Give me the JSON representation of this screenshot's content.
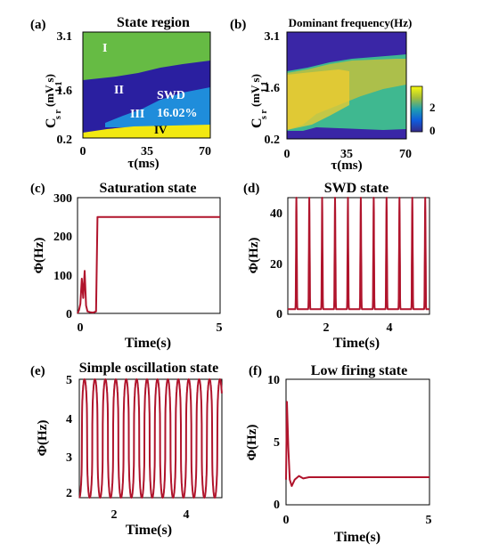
{
  "chart_data": [
    {
      "panel": "(a)",
      "type": "heatmap",
      "title": "State region",
      "xlabel": "τ(ms)",
      "ylabel_main": "C",
      "ylabel_sub": "s r",
      "ylabel_sub2": "1 1",
      "ylabel_unit": "(mV s)",
      "xticks": [
        "0",
        "35",
        "70"
      ],
      "yticks": [
        "0.2",
        "1.6",
        "3.1"
      ],
      "xlim": [
        0,
        70
      ],
      "ylim": [
        0.2,
        3.1
      ],
      "regions": [
        {
          "label": "I",
          "color": "#66bb44"
        },
        {
          "label": "II",
          "color": "#2a1fa0"
        },
        {
          "label": "III",
          "color": "#1f8ddb"
        },
        {
          "label": "IV",
          "color": "#f2e811"
        }
      ],
      "annotation_swd": "SWD",
      "annotation_pct": "16.02%"
    },
    {
      "panel": "(b)",
      "type": "heatmap",
      "title": "Dominant frequency(Hz)",
      "xlabel": "τ(ms)",
      "ylabel_main": "C",
      "ylabel_sub": "s r",
      "ylabel_sub2": "1 1",
      "ylabel_unit": "(mV s)",
      "xticks": [
        "0",
        "35",
        "70"
      ],
      "yticks": [
        "0.2",
        "1.6",
        "3.1"
      ],
      "xlim": [
        0,
        70
      ],
      "ylim": [
        0.2,
        3.1
      ],
      "colorbar_ticks": [
        "0",
        "2"
      ],
      "colorbar_range": [
        0,
        3
      ]
    },
    {
      "panel": "(c)",
      "type": "line",
      "title": "Saturation state",
      "xlabel": "Time(s)",
      "ylabel": "Φ(Hz)",
      "xlim": [
        0,
        5
      ],
      "ylim": [
        0,
        300
      ],
      "xticks": [
        "0",
        "5"
      ],
      "yticks": [
        "0",
        "100",
        "200",
        "300"
      ],
      "series": [
        {
          "color": "#b0142c",
          "x": [
            0,
            0.05,
            0.1,
            0.15,
            0.2,
            0.25,
            0.3,
            0.35,
            0.45,
            0.55,
            0.65,
            0.7,
            5
          ],
          "y": [
            0,
            8,
            25,
            90,
            40,
            110,
            20,
            5,
            3,
            2,
            5,
            250,
            250
          ]
        }
      ]
    },
    {
      "panel": "(d)",
      "type": "line",
      "title": "SWD state",
      "xlabel": "Time(s)",
      "ylabel": "Φ(Hz)",
      "xlim": [
        1.3,
        4.6
      ],
      "ylim": [
        0,
        46
      ],
      "xticks": [
        "2",
        "4"
      ],
      "yticks": [
        "0",
        "20",
        "40"
      ],
      "period_s": 0.3,
      "first_peak_s": 1.5,
      "baseline": 2,
      "peak": 46,
      "shoulder": 30
    },
    {
      "panel": "(e)",
      "type": "line",
      "title": "Simple oscillation state",
      "xlabel": "Time(s)",
      "ylabel": "Φ(Hz)",
      "xlim": [
        1,
        4.9
      ],
      "ylim": [
        1.9,
        5
      ],
      "xticks": [
        "2",
        "4"
      ],
      "yticks": [
        "2",
        "3",
        "4",
        "5"
      ],
      "period_s": 0.285,
      "min": 1.9,
      "max": 5
    },
    {
      "panel": "(f)",
      "type": "line",
      "title": "Low firing state",
      "xlabel": "Time(s)",
      "ylabel": "Φ(Hz)",
      "xlim": [
        0,
        5
      ],
      "ylim": [
        0,
        10
      ],
      "xticks": [
        "0",
        "5"
      ],
      "yticks": [
        "0",
        "5",
        "10"
      ],
      "series": [
        {
          "color": "#b0142c",
          "x": [
            0,
            0.03,
            0.08,
            0.13,
            0.2,
            0.3,
            0.45,
            0.6,
            0.8,
            5
          ],
          "y": [
            2,
            8.2,
            4.5,
            2.0,
            1.5,
            2.0,
            2.3,
            2.1,
            2.2,
            2.2
          ]
        }
      ]
    }
  ]
}
